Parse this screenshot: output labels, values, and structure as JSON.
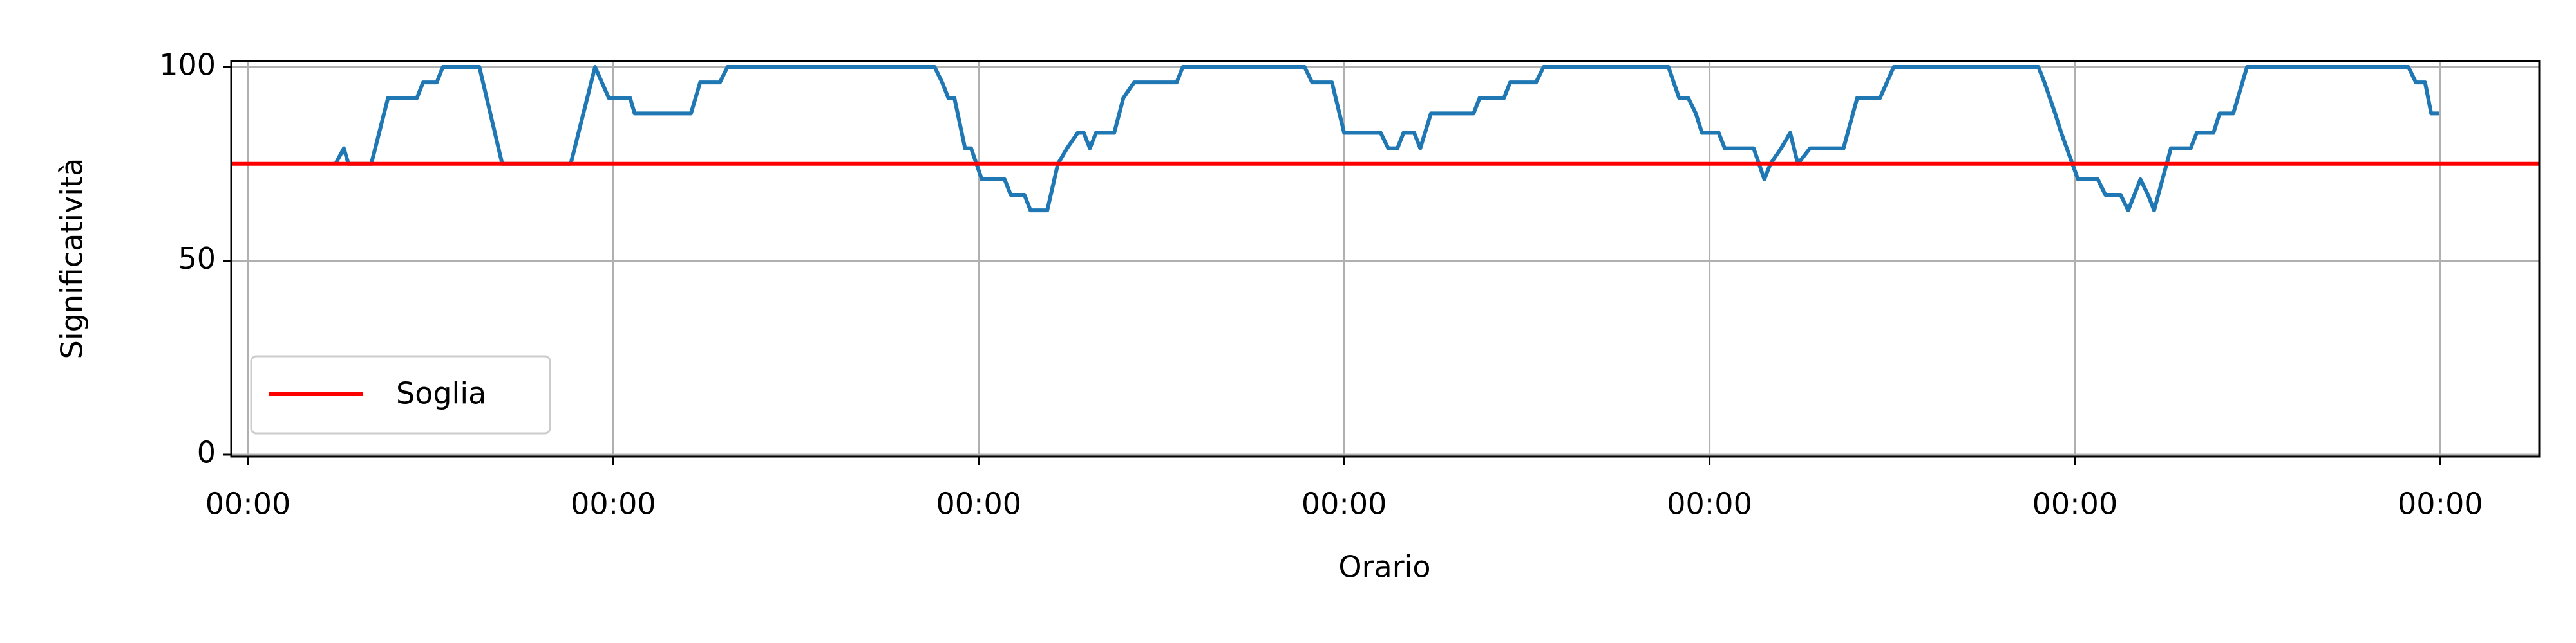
{
  "chart_data": {
    "type": "line",
    "xlabel": "Orario",
    "ylabel": "Significatività",
    "series": [
      {
        "color": "#1f77b4",
        "x": [
          5.75,
          6.3,
          6.6,
          8.1,
          9.2,
          11.1,
          11.5,
          12.4,
          12.8,
          15.2,
          16.7,
          21.2,
          22.8,
          23.7,
          25.1,
          25.4,
          29.1,
          29.7,
          31.0,
          31.5,
          45.1,
          45.6,
          46.0,
          46.4,
          47.1,
          47.5,
          48.2,
          49.7,
          50.1,
          51.0,
          51.4,
          52.5,
          53.2,
          53.8,
          54.5,
          54.9,
          55.3,
          55.7,
          56.9,
          57.5,
          58.2,
          61.0,
          61.4,
          69.4,
          69.9,
          71.2,
          72.0,
          74.4,
          74.9,
          75.5,
          75.9,
          76.6,
          77.0,
          77.7,
          78.8,
          80.5,
          80.9,
          82.5,
          82.9,
          84.6,
          85.1,
          93.3,
          94.0,
          94.6,
          95.1,
          95.5,
          96.6,
          97.0,
          98.9,
          99.6,
          100.0,
          100.7,
          101.3,
          101.8,
          102.6,
          104.8,
          105.7,
          107.2,
          108.1,
          117.6,
          118.0,
          118.7,
          119.1,
          120.2,
          121.5,
          122.0,
          123.0,
          123.5,
          123.9,
          124.3,
          124.8,
          125.2,
          126.3,
          127.6,
          128.0,
          129.1,
          129.5,
          130.4,
          131.3,
          141.9,
          142.4,
          143.0,
          143.4,
          143.9
        ],
        "values": [
          75,
          79,
          75,
          75,
          92,
          92,
          96,
          96,
          100,
          100,
          75,
          75,
          100,
          92,
          92,
          88,
          88,
          96,
          96,
          100,
          100,
          96,
          92,
          92,
          79,
          79,
          71,
          71,
          67,
          67,
          63,
          63,
          75,
          79,
          83,
          83,
          79,
          83,
          83,
          92,
          96,
          96,
          100,
          100,
          96,
          96,
          83,
          83,
          79,
          79,
          83,
          83,
          79,
          88,
          88,
          88,
          92,
          92,
          96,
          96,
          100,
          100,
          92,
          92,
          88,
          83,
          83,
          79,
          79,
          71,
          75,
          79,
          83,
          75,
          79,
          79,
          92,
          92,
          100,
          100,
          96,
          88,
          83,
          71,
          71,
          67,
          67,
          63,
          67,
          71,
          67,
          63,
          79,
          79,
          83,
          83,
          88,
          88,
          100,
          100,
          96,
          96,
          88,
          88
        ]
      }
    ],
    "threshold": {
      "name": "Soglia",
      "value": 75,
      "color": "#ff0000"
    },
    "legend": "lower left",
    "xlim": [
      -1.1,
      150.5
    ],
    "xticks": [
      {
        "value": 0,
        "label": "00:00"
      },
      {
        "value": 24,
        "label": "00:00"
      },
      {
        "value": 48,
        "label": "00:00"
      },
      {
        "value": 72,
        "label": "00:00"
      },
      {
        "value": 96,
        "label": "00:00"
      },
      {
        "value": 120,
        "label": "00:00"
      },
      {
        "value": 144,
        "label": "00:00"
      }
    ],
    "ylim": [
      -0.5,
      101.5
    ],
    "yticks": [
      0,
      50,
      100
    ],
    "grid": true
  }
}
